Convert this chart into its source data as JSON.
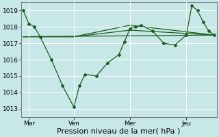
{
  "bg_color": "#c8e8e8",
  "grid_color": "#ffffff",
  "line_color": "#1a5c1a",
  "xlabel": "Pression niveau de la mer( hPa )",
  "ylim": [
    1012.5,
    1019.5
  ],
  "yticks": [
    1013,
    1014,
    1015,
    1016,
    1017,
    1018,
    1019
  ],
  "xtick_labels": [
    "Mar",
    "Ven",
    "Mer",
    "Jeu"
  ],
  "xtick_positions": [
    0.5,
    4.5,
    9.5,
    14.5
  ],
  "xlim": [
    -0.2,
    17.2
  ],
  "series_main": {
    "x": [
      0,
      0.5,
      1,
      1.5,
      2.5,
      3.5,
      4.5,
      5.0,
      5.5,
      6.5,
      7.5,
      8.5,
      9.0,
      9.5,
      10.0,
      10.5,
      11.5,
      12.5,
      13.5,
      14.5,
      15.0,
      15.5,
      16.0,
      16.5,
      17.0
    ],
    "y": [
      1019.0,
      1018.2,
      1018.0,
      1017.4,
      1016.0,
      1014.4,
      1013.1,
      1014.4,
      1015.1,
      1015.0,
      1015.8,
      1016.3,
      1017.1,
      1017.9,
      1018.0,
      1018.1,
      1017.75,
      1017.0,
      1016.9,
      1017.5,
      1019.3,
      1019.0,
      1018.3,
      1017.75,
      1017.5
    ]
  },
  "series_flat": [
    {
      "x": [
        0,
        17
      ],
      "y": [
        1017.4,
        1017.5
      ]
    },
    {
      "x": [
        0,
        4.5,
        9.5,
        17
      ],
      "y": [
        1017.4,
        1017.4,
        1017.8,
        1017.5
      ]
    },
    {
      "x": [
        0,
        4.5,
        9.5,
        17
      ],
      "y": [
        1017.4,
        1017.4,
        1018.1,
        1017.5
      ]
    }
  ],
  "xlabel_fontsize": 8,
  "tick_fontsize": 6.5
}
